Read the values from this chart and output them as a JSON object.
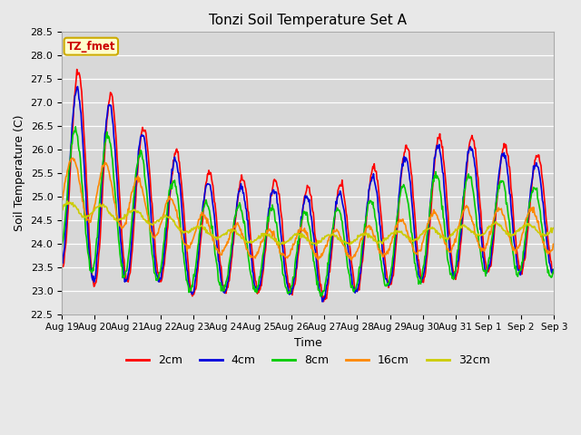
{
  "title": "Tonzi Soil Temperature Set A",
  "xlabel": "Time",
  "ylabel": "Soil Temperature (C)",
  "ylim": [
    22.5,
    28.5
  ],
  "yticks": [
    22.5,
    23.0,
    23.5,
    24.0,
    24.5,
    25.0,
    25.5,
    26.0,
    26.5,
    27.0,
    27.5,
    28.0,
    28.5
  ],
  "background_color": "#e8e8e8",
  "plot_bg_color": "#d8d8d8",
  "grid_color": "#ffffff",
  "annotation_text": "TZ_fmet",
  "annotation_bg": "#ffffcc",
  "annotation_border": "#ccaa00",
  "tick_labels": [
    "Aug 19",
    "Aug 20",
    "Aug 21",
    "Aug 22",
    "Aug 23",
    "Aug 24",
    "Aug 25",
    "Aug 26",
    "Aug 27",
    "Aug 28",
    "Aug 29",
    "Aug 30",
    "Aug 31",
    "Sep 1",
    "Sep 2",
    "Sep 3"
  ],
  "legend_labels": [
    "2cm",
    "4cm",
    "8cm",
    "16cm",
    "32cm"
  ],
  "legend_colors": [
    "#ff0000",
    "#0000dd",
    "#00cc00",
    "#ff8800",
    "#cccc00"
  ],
  "line_width": 1.2,
  "figsize": [
    6.4,
    4.8
  ],
  "dpi": 100
}
